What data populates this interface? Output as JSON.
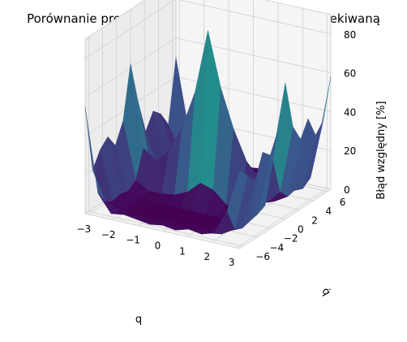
{
  "chart_data": {
    "type": "surface3d",
    "title": "Porównanie predykcji lagrangianu z wartością oczekiwaną",
    "xlabel": "q",
    "ylabel": "q̇",
    "zlabel": "Błąd względny [%]",
    "xlim": [
      -3.14,
      3.14
    ],
    "ylim": [
      -6.5,
      6.5
    ],
    "zlim": [
      0,
      90
    ],
    "xticks": [
      "−3",
      "−2",
      "−1",
      "0",
      "1",
      "2",
      "3"
    ],
    "yticks": [
      "−6",
      "−4",
      "−2",
      "0",
      "2",
      "4",
      "6"
    ],
    "zticks": [
      "0",
      "20",
      "40",
      "60",
      "80"
    ],
    "colormap": "viridis",
    "grid": true,
    "x": [
      -3.14,
      -2.62,
      -2.09,
      -1.57,
      -1.05,
      -0.52,
      0.0,
      0.52,
      1.05,
      1.57,
      2.09,
      2.62,
      3.14
    ],
    "y": [
      -6.5,
      -5.42,
      -4.33,
      -3.25,
      -2.17,
      -1.08,
      0.0,
      1.08,
      2.17,
      3.25,
      4.33,
      5.42,
      6.5
    ],
    "z": [
      [
        55,
        12,
        3,
        4,
        3,
        2,
        3,
        2,
        4,
        3,
        5,
        18,
        40
      ],
      [
        20,
        5,
        2,
        1,
        1,
        1,
        1,
        1,
        1,
        1,
        2,
        6,
        35
      ],
      [
        28,
        3,
        1,
        0,
        0,
        0,
        0,
        0,
        0,
        1,
        1,
        4,
        30
      ],
      [
        32,
        4,
        1,
        0,
        0,
        0,
        0,
        0,
        0,
        0,
        1,
        5,
        42
      ],
      [
        25,
        3,
        1,
        1,
        0,
        0,
        0,
        0,
        0,
        1,
        1,
        6,
        38
      ],
      [
        35,
        6,
        2,
        2,
        3,
        6,
        12,
        10,
        4,
        2,
        2,
        8,
        48
      ],
      [
        62,
        20,
        15,
        22,
        35,
        55,
        88,
        60,
        40,
        25,
        18,
        30,
        70
      ],
      [
        40,
        8,
        3,
        2,
        4,
        8,
        15,
        9,
        5,
        3,
        3,
        10,
        45
      ],
      [
        22,
        3,
        1,
        1,
        0,
        0,
        1,
        0,
        0,
        1,
        1,
        5,
        36
      ],
      [
        30,
        4,
        1,
        0,
        0,
        0,
        0,
        0,
        0,
        0,
        1,
        6,
        44
      ],
      [
        26,
        3,
        1,
        0,
        0,
        0,
        0,
        0,
        0,
        1,
        1,
        4,
        33
      ],
      [
        18,
        5,
        2,
        1,
        1,
        1,
        1,
        1,
        1,
        1,
        2,
        7,
        38
      ],
      [
        50,
        14,
        4,
        3,
        3,
        2,
        2,
        3,
        4,
        3,
        6,
        22,
        58
      ]
    ]
  }
}
